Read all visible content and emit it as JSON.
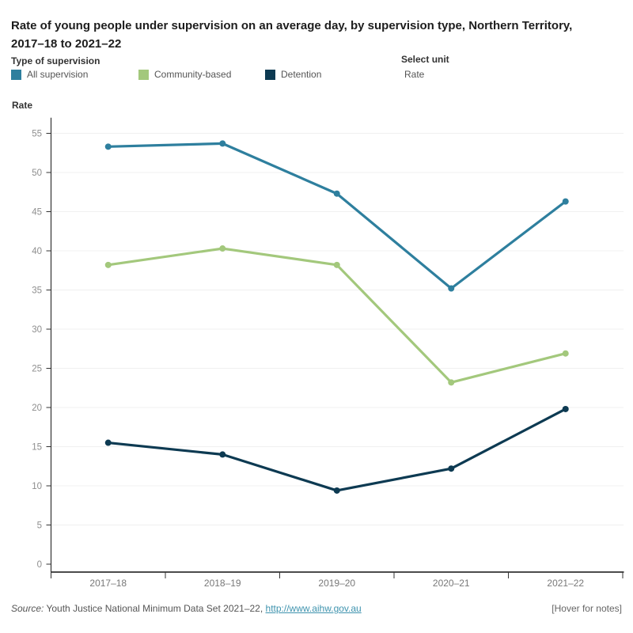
{
  "header": {
    "title_line1": "Rate of young people under supervision on an average day, by supervision type, Northern Territory,",
    "title_line2": "2017–18 to 2021–22"
  },
  "legend": {
    "title": "Type of supervision",
    "items": [
      {
        "label": "All supervision",
        "color": "#2E7F9E"
      },
      {
        "label": "Community-based",
        "color": "#A3C87C"
      },
      {
        "label": "Detention",
        "color": "#0D3A52"
      }
    ]
  },
  "unit_selector": {
    "label": "Select unit",
    "value": "Rate"
  },
  "chart_data": {
    "type": "line",
    "title": "Rate of young people under supervision on an average day, by supervision type, Northern Territory, 2017–18 to 2021–22",
    "xlabel": "",
    "ylabel": "Rate",
    "categories": [
      "2017–18",
      "2018–19",
      "2019–20",
      "2020–21",
      "2021–22"
    ],
    "series": [
      {
        "name": "All supervision",
        "color": "#2E7F9E",
        "values": [
          53.3,
          53.7,
          47.3,
          35.2,
          46.3
        ]
      },
      {
        "name": "Community-based",
        "color": "#A3C87C",
        "values": [
          38.2,
          40.3,
          38.2,
          23.2,
          26.9
        ]
      },
      {
        "name": "Detention",
        "color": "#0D3A52",
        "values": [
          15.5,
          14.0,
          9.4,
          12.2,
          19.8
        ]
      }
    ],
    "ylim": [
      0,
      57
    ],
    "yticks": [
      0,
      5,
      10,
      15,
      20,
      25,
      30,
      35,
      40,
      45,
      50,
      55
    ],
    "grid": true,
    "legend_position": "top"
  },
  "footer": {
    "source_prefix": "Source:",
    "source_text": " Youth Justice National Minimum Data Set 2021–22, ",
    "source_link": "http://www.aihw.gov.au",
    "notes": "[Hover for notes]"
  }
}
